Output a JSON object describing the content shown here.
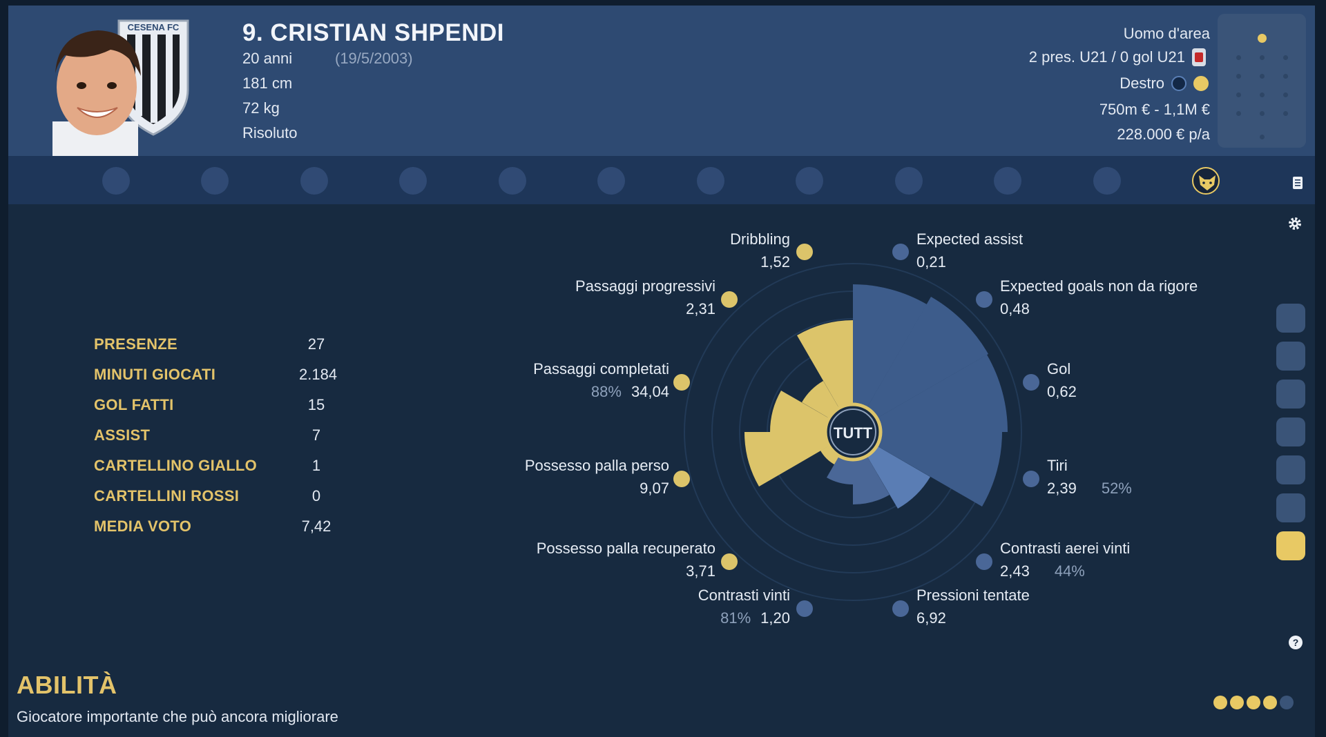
{
  "player": {
    "number_name": "9. CRISTIAN SHPENDI",
    "age": "20 anni",
    "dob": "(19/5/2003)",
    "height": "181 cm",
    "weight": "72 kg",
    "status": "Risoluto",
    "club_crest_text": "CESENA FC"
  },
  "profile": {
    "role": "Uomo d'area",
    "u21": "2 pres. U21 / 0 gol U21",
    "foot": "Destro",
    "value": "750m € - 1,1M €",
    "wage": "228.000 € p/a"
  },
  "tabs": [
    "anchor-icon",
    "goalkeeper-icon",
    "shield-icon",
    "hammer-sickle-icon",
    "eye-icon",
    "pencil-icon",
    "helmet-icon",
    "star-burst-icon",
    "wolf-icon",
    "wave-icon",
    "target-icon",
    "fox-icon"
  ],
  "active_tab": 11,
  "stats": [
    {
      "label": "PRESENZE",
      "value": "27"
    },
    {
      "label": "MINUTI GIOCATI",
      "value": "2.184"
    },
    {
      "label": "GOL FATTI",
      "value": "15"
    },
    {
      "label": "ASSIST",
      "value": "7"
    },
    {
      "label": "CARTELLINO GIALLO",
      "value": "1"
    },
    {
      "label": "CARTELLINI ROSSI",
      "value": "0"
    },
    {
      "label": "MEDIA VOTO",
      "value": "7,42"
    }
  ],
  "radar": {
    "center_label": "TUTT",
    "metrics": {
      "dribbling": {
        "label": "Dribbling",
        "value": "1,52"
      },
      "xa": {
        "label": "Expected assist",
        "value": "0,21"
      },
      "npxg": {
        "label": "Expected goals non da rigore",
        "value": "0,48"
      },
      "progressive": {
        "label": "Passaggi progressivi",
        "value": "2,31"
      },
      "completed": {
        "label": "Passaggi completati",
        "value": "34,04",
        "pct": "88%"
      },
      "goals": {
        "label": "Gol",
        "value": "0,62"
      },
      "lost": {
        "label": "Possesso palla perso",
        "value": "9,07"
      },
      "shots": {
        "label": "Tiri",
        "value": "2,39",
        "pct": "52%"
      },
      "recovered": {
        "label": "Possesso palla recuperato",
        "value": "3,71"
      },
      "aerial": {
        "label": "Contrasti aerei vinti",
        "value": "2,43",
        "pct": "44%"
      },
      "tackles": {
        "label": "Contrasti vinti",
        "value": "1,20",
        "pct": "81%"
      },
      "pressures": {
        "label": "Pressioni tentate",
        "value": "6,92"
      }
    }
  },
  "section": {
    "title": "ABILITÀ",
    "description": "Giocatore importante che può ancora migliorare"
  },
  "ability_rating": 4,
  "ability_rating_max": 5
}
